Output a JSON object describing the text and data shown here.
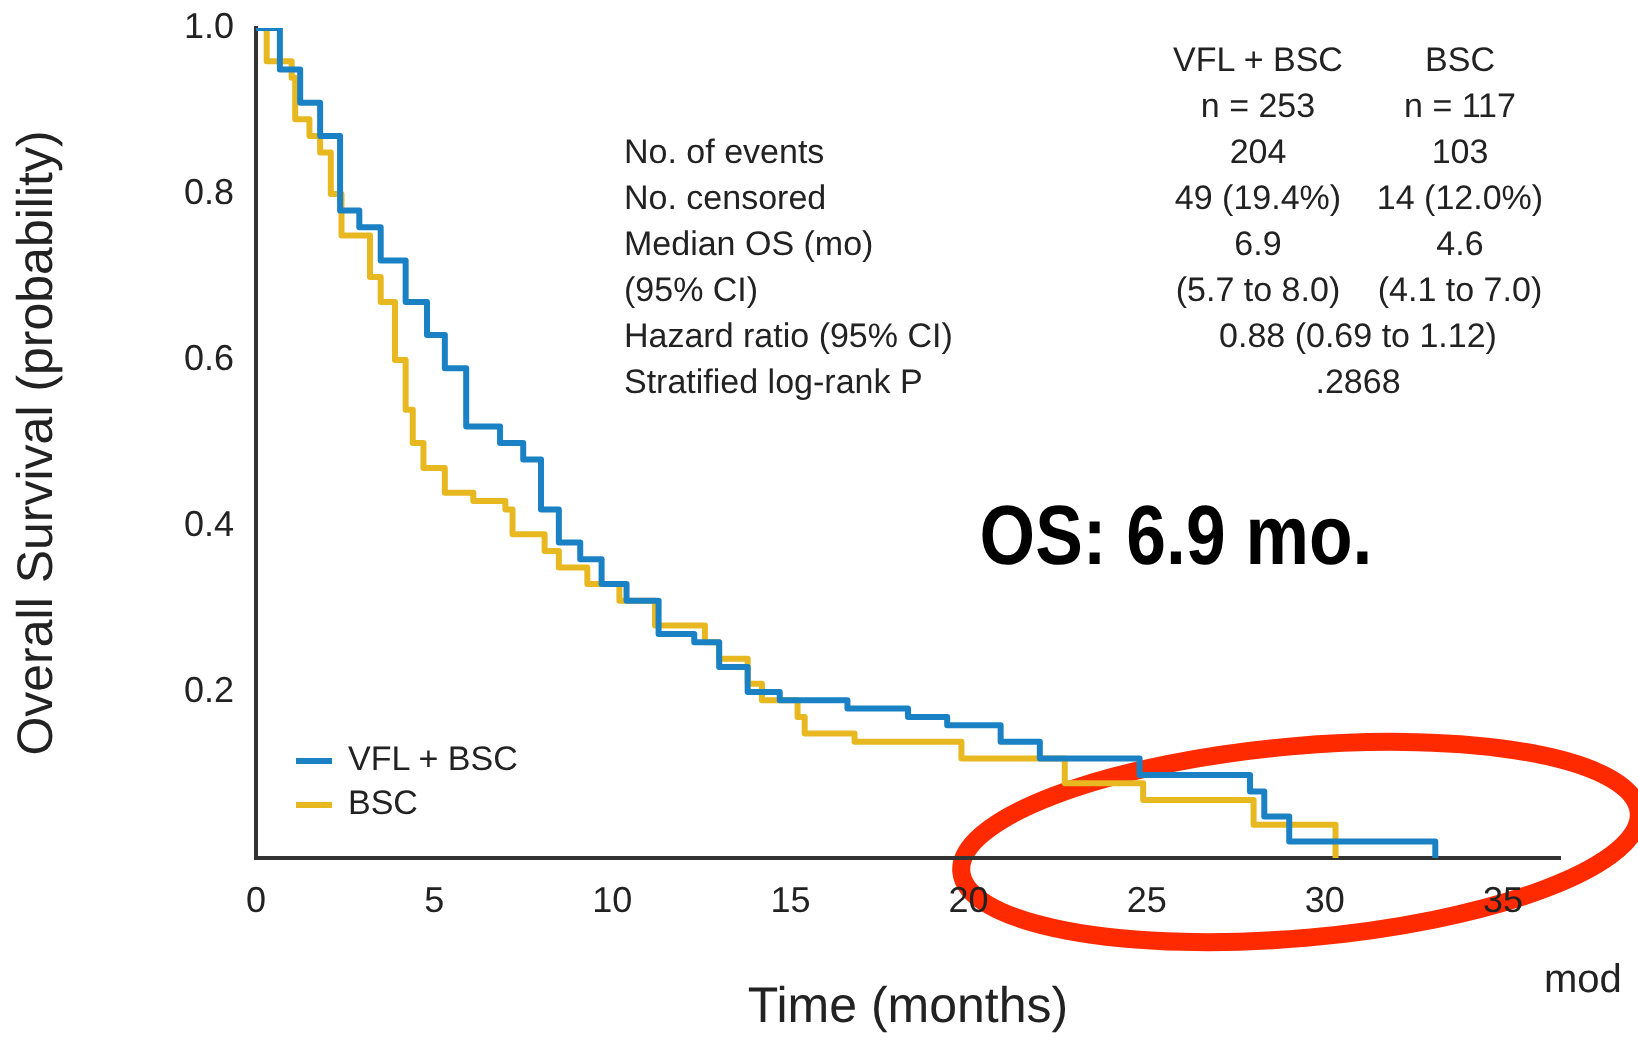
{
  "chart_data": {
    "type": "step",
    "xlabel": "Time (months)",
    "ylabel": "Overall Survival (probability)",
    "xlim": [
      0,
      36.6
    ],
    "xticks": [
      0,
      5,
      10,
      15,
      20,
      25,
      30,
      35
    ],
    "ylim": [
      0,
      1.0
    ],
    "yticks": [
      {
        "value": 0.2,
        "label": "0.2"
      },
      {
        "value": 0.4,
        "label": "0.4"
      },
      {
        "value": 0.6,
        "label": "0.6"
      },
      {
        "value": 0.8,
        "label": "0.8"
      },
      {
        "value": 1.0,
        "label": "1.0"
      }
    ],
    "grid": false,
    "legend": "bottom left",
    "marker": "none",
    "line_style": "solid",
    "series": [
      {
        "name": "VFL + BSC",
        "color": "#1a82c4",
        "x": [
          0,
          0.67,
          1.24,
          1.8,
          2.36,
          2.9,
          3.5,
          4.2,
          4.8,
          5.3,
          5.9,
          6.85,
          7.5,
          8.0,
          8.5,
          9.1,
          9.7,
          10.4,
          11.3,
          12.3,
          13.0,
          13.8,
          14.7,
          16.6,
          18.3,
          19.4,
          20.9,
          22.0,
          24.8,
          27.9,
          28.3,
          29.0,
          33.1
        ],
        "values": [
          1.0,
          0.95,
          0.91,
          0.87,
          0.78,
          0.76,
          0.72,
          0.67,
          0.63,
          0.59,
          0.52,
          0.5,
          0.48,
          0.42,
          0.38,
          0.36,
          0.33,
          0.31,
          0.27,
          0.26,
          0.23,
          0.2,
          0.19,
          0.18,
          0.17,
          0.16,
          0.14,
          0.12,
          0.1,
          0.08,
          0.05,
          0.02,
          0
        ]
      },
      {
        "name": "BSC",
        "color": "#e8b820",
        "x": [
          0,
          0.3,
          1.0,
          1.1,
          1.5,
          1.8,
          2.1,
          2.4,
          3.2,
          3.5,
          3.9,
          4.2,
          4.4,
          4.7,
          5.3,
          6.1,
          7.0,
          7.2,
          8.1,
          8.5,
          9.3,
          10.2,
          11.2,
          12.6,
          13.0,
          13.8,
          14.2,
          15.2,
          15.4,
          16.8,
          19.8,
          22.7,
          24.9,
          28.0,
          30.3
        ],
        "values": [
          1.0,
          0.96,
          0.94,
          0.89,
          0.87,
          0.85,
          0.8,
          0.75,
          0.7,
          0.67,
          0.6,
          0.54,
          0.5,
          0.47,
          0.44,
          0.43,
          0.42,
          0.39,
          0.37,
          0.35,
          0.33,
          0.31,
          0.28,
          0.26,
          0.24,
          0.21,
          0.19,
          0.17,
          0.15,
          0.14,
          0.12,
          0.09,
          0.07,
          0.04,
          0
        ]
      }
    ],
    "annotations": [
      "VFL + BSC",
      "BSC",
      "n = 253",
      "n = 117",
      "No. of events",
      "204",
      "103",
      "No. censored",
      "49 (19.4%)",
      "14 (12.0%)",
      "Median OS (mo)",
      "6.9",
      "4.6",
      "(95% CI)",
      "(5.7 to 8.0)",
      "(4.1 to 7.0)",
      "Hazard ratio (95% CI)",
      "0.88 (0.69 to 1.12)",
      "Stratified log-rank P",
      ".2868",
      "OS: 6.9 mo.",
      "mod"
    ]
  }
}
